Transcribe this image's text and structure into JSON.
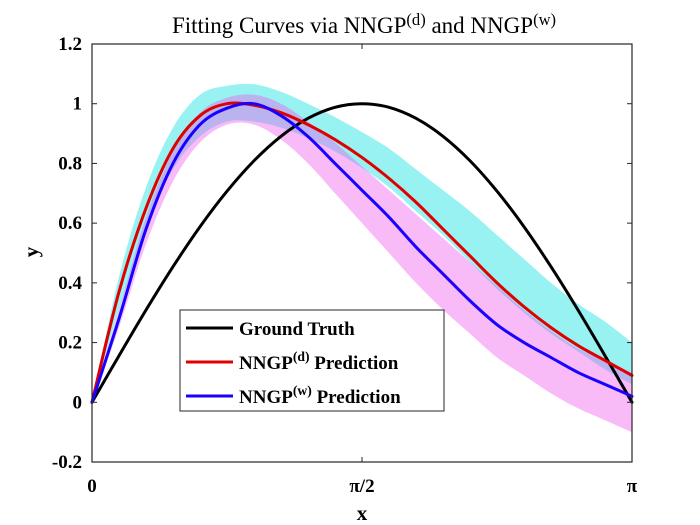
{
  "chart_data": {
    "type": "line",
    "title": "Fitting Curves via NNGP",
    "title_parts": [
      {
        "text": "Fitting Curves via NNGP",
        "sup": false
      },
      {
        "text": "(d)",
        "sup": true
      },
      {
        "text": " and NNGP",
        "sup": false
      },
      {
        "text": "(w)",
        "sup": true
      }
    ],
    "xlabel": "x",
    "ylabel": "y",
    "xlim": [
      0,
      3.14159
    ],
    "ylim": [
      -0.2,
      1.2
    ],
    "xticks": [
      {
        "value": 0,
        "label": "0"
      },
      {
        "value": 1.5708,
        "label": "π/2"
      },
      {
        "value": 3.14159,
        "label": "π"
      }
    ],
    "yticks": [
      {
        "value": -0.2,
        "label": "-0.2"
      },
      {
        "value": 0,
        "label": "0"
      },
      {
        "value": 0.2,
        "label": "0.2"
      },
      {
        "value": 0.4,
        "label": "0.4"
      },
      {
        "value": 0.6,
        "label": "0.6"
      },
      {
        "value": 0.8,
        "label": "0.8"
      },
      {
        "value": 1,
        "label": "1"
      },
      {
        "value": 1.2,
        "label": "1.2"
      }
    ],
    "grid": false,
    "legend_position": "bottom-left",
    "x": [
      0,
      0.1571,
      0.3142,
      0.4712,
      0.6283,
      0.7854,
      0.9425,
      1.0996,
      1.2566,
      1.4137,
      1.5708,
      1.7279,
      1.885,
      2.042,
      2.1991,
      2.3562,
      2.5133,
      2.6704,
      2.8274,
      2.9845,
      3.1416
    ],
    "series": [
      {
        "name": "Ground Truth",
        "color": "#000000",
        "values": [
          0,
          0.156,
          0.309,
          0.454,
          0.588,
          0.707,
          0.809,
          0.891,
          0.951,
          0.988,
          1.0,
          0.988,
          0.951,
          0.891,
          0.809,
          0.707,
          0.588,
          0.454,
          0.309,
          0.156,
          0.0
        ]
      },
      {
        "name": "NNGP(d) Prediction",
        "legend_parts": [
          {
            "text": "NNGP",
            "sup": false
          },
          {
            "text": "(d)",
            "sup": true
          },
          {
            "text": " Prediction",
            "sup": false
          }
        ],
        "color": "#e00000",
        "band_color": "#00dede",
        "values": [
          0,
          0.37,
          0.65,
          0.85,
          0.96,
          1.0,
          0.995,
          0.97,
          0.93,
          0.88,
          0.82,
          0.75,
          0.67,
          0.58,
          0.49,
          0.4,
          0.32,
          0.25,
          0.19,
          0.14,
          0.09
        ],
        "band_lower": [
          0,
          0.31,
          0.58,
          0.78,
          0.89,
          0.94,
          0.94,
          0.92,
          0.885,
          0.84,
          0.785,
          0.72,
          0.64,
          0.56,
          0.47,
          0.38,
          0.3,
          0.23,
          0.17,
          0.11,
          0.06
        ],
        "band_upper": [
          0,
          0.42,
          0.72,
          0.92,
          1.03,
          1.06,
          1.065,
          1.04,
          1.0,
          0.955,
          0.905,
          0.85,
          0.78,
          0.71,
          0.64,
          0.56,
          0.48,
          0.4,
          0.33,
          0.27,
          0.2
        ]
      },
      {
        "name": "NNGP(w) Prediction",
        "legend_parts": [
          {
            "text": "NNGP",
            "sup": false
          },
          {
            "text": "(w)",
            "sup": true
          },
          {
            "text": " Prediction",
            "sup": false
          }
        ],
        "color": "#1a00ff",
        "band_color": "#ee55ee",
        "values": [
          0,
          0.28,
          0.58,
          0.8,
          0.93,
          0.985,
          1.0,
          0.96,
          0.89,
          0.8,
          0.71,
          0.62,
          0.52,
          0.43,
          0.34,
          0.26,
          0.2,
          0.15,
          0.1,
          0.06,
          0.02
        ],
        "band_lower": [
          0,
          0.25,
          0.53,
          0.74,
          0.87,
          0.93,
          0.93,
          0.88,
          0.8,
          0.7,
          0.6,
          0.5,
          0.4,
          0.31,
          0.23,
          0.15,
          0.09,
          0.03,
          -0.02,
          -0.06,
          -0.1
        ],
        "band_upper": [
          0,
          0.31,
          0.62,
          0.84,
          0.97,
          1.02,
          1.03,
          1.0,
          0.94,
          0.87,
          0.79,
          0.71,
          0.63,
          0.55,
          0.47,
          0.39,
          0.31,
          0.24,
          0.18,
          0.14,
          0.1
        ]
      }
    ]
  }
}
